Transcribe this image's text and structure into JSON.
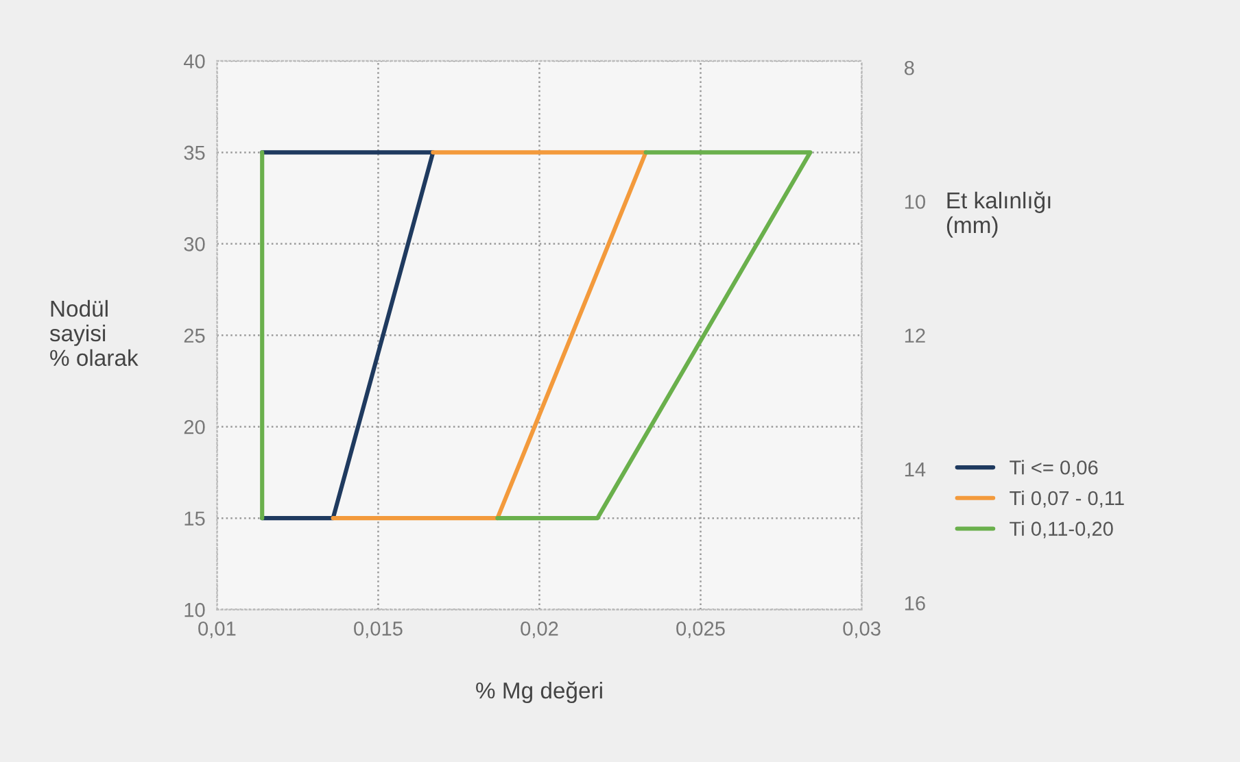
{
  "chart_data": {
    "type": "line",
    "xlabel": "% Mg değeri",
    "ylabel": "Nodül\nsayisi\n% olarak",
    "y2label": "Et kalınlığı\n(mm)",
    "xlim": [
      0.01,
      0.03
    ],
    "xticks": [
      {
        "value": 0.01,
        "label": "0,01"
      },
      {
        "value": 0.015,
        "label": "0,015"
      },
      {
        "value": 0.02,
        "label": "0,02"
      },
      {
        "value": 0.025,
        "label": "0,025"
      },
      {
        "value": 0.03,
        "label": "0,03"
      }
    ],
    "ylim": [
      10,
      40
    ],
    "yticks": [
      10,
      15,
      20,
      25,
      30,
      35,
      40
    ],
    "y2lim": [
      16.1,
      7.9
    ],
    "y2ticks": [
      8,
      10,
      12,
      14,
      16
    ],
    "grid": true,
    "legend": "right",
    "line_style": "solid",
    "marker": "none",
    "series": [
      {
        "name": "Ti <= 0,06",
        "color": "#1f3a5f",
        "x": [
          0.0114,
          0.0167,
          0.0136,
          0.0114
        ],
        "values": [
          35,
          35,
          15,
          15
        ]
      },
      {
        "name": "Ti 0,07 - 0,11",
        "color": "#f39a3c",
        "x": [
          0.0167,
          0.0233,
          0.0187,
          0.0136
        ],
        "values": [
          35,
          35,
          15,
          15
        ]
      },
      {
        "name": "Ti 0,11-0,20",
        "color": "#6ab04c",
        "x": [
          0.0233,
          0.0284,
          0.0218,
          0.0187
        ],
        "values": [
          35,
          35,
          15,
          15
        ]
      },
      {
        "color": "#6ab04c",
        "x": [
          0.0114,
          0.0114
        ],
        "values": [
          15,
          35
        ]
      }
    ]
  }
}
